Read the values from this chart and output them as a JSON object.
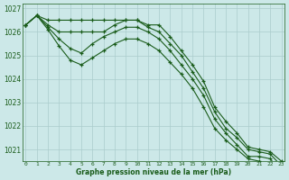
{
  "hours": [
    0,
    1,
    2,
    3,
    4,
    5,
    6,
    7,
    8,
    9,
    10,
    11,
    12,
    13,
    14,
    15,
    16,
    17,
    18,
    19,
    20,
    21,
    22,
    23
  ],
  "line1": [
    1026.3,
    1026.7,
    1026.5,
    1026.5,
    1026.5,
    1026.5,
    1026.5,
    1026.5,
    1026.5,
    1026.5,
    1026.5,
    1026.3,
    1026.3,
    1025.8,
    1025.2,
    1024.6,
    1023.9,
    1022.8,
    1022.2,
    1021.7,
    1021.1,
    1021.0,
    1020.9,
    1020.5
  ],
  "line2": [
    1026.3,
    1026.7,
    1026.3,
    1026.0,
    1026.0,
    1026.0,
    1026.0,
    1026.0,
    1026.3,
    1026.5,
    1026.5,
    1026.2,
    1026.0,
    1025.5,
    1025.0,
    1024.3,
    1023.6,
    1022.6,
    1021.9,
    1021.5,
    1021.0,
    1020.9,
    1020.8,
    1020.3
  ],
  "line3": [
    1026.3,
    1026.7,
    1026.2,
    1025.7,
    1025.3,
    1025.1,
    1025.5,
    1025.8,
    1026.0,
    1026.2,
    1026.2,
    1026.0,
    1025.7,
    1025.2,
    1024.6,
    1024.0,
    1023.3,
    1022.3,
    1021.7,
    1021.2,
    1020.7,
    1020.7,
    1020.6,
    1020.0
  ],
  "line4": [
    1026.3,
    1026.7,
    1026.1,
    1025.4,
    1024.8,
    1024.6,
    1024.9,
    1025.2,
    1025.5,
    1025.7,
    1025.7,
    1025.5,
    1025.2,
    1024.7,
    1024.2,
    1023.6,
    1022.8,
    1021.9,
    1021.4,
    1021.0,
    1020.6,
    1020.5,
    1020.4,
    1019.9
  ],
  "ylim": [
    1020.5,
    1027.2
  ],
  "yticks": [
    1021,
    1022,
    1023,
    1024,
    1025,
    1026,
    1027
  ],
  "bg_color": "#cce8e8",
  "grid_color_major": "#aacccc",
  "grid_color_minor": "#bbdddd",
  "line_color": "#1a5c1a",
  "xlabel": "Graphe pression niveau de la mer (hPa)",
  "marker": "+",
  "marker_size": 3,
  "line_width": 0.8
}
